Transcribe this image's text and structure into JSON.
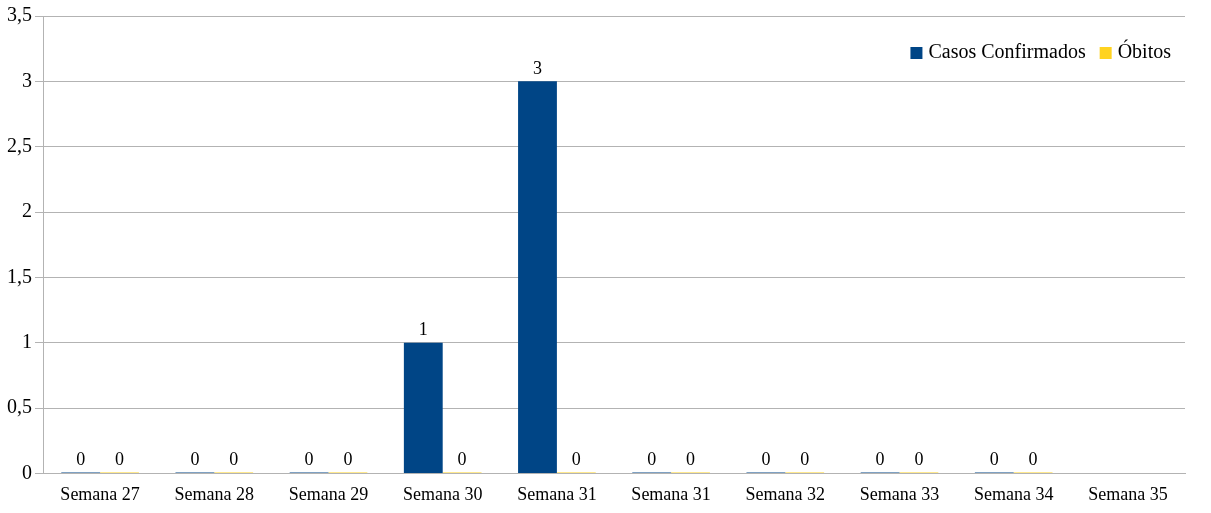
{
  "chart_data": {
    "type": "bar",
    "categories": [
      "Semana 27",
      "Semana 28",
      "Semana 29",
      "Semana 30",
      "Semana 31",
      "Semana 31",
      "Semana 32",
      "Semana 33",
      "Semana 34",
      "Semana 35"
    ],
    "series": [
      {
        "name": "Casos Confirmados",
        "color": "#004586",
        "values": [
          0,
          0,
          0,
          1,
          3,
          0,
          0,
          0,
          0,
          null
        ],
        "value_labels": [
          "0",
          "0",
          "0",
          "1",
          "3",
          "0",
          "0",
          "0",
          "0",
          null
        ]
      },
      {
        "name": "Óbitos",
        "color": "#ffd320",
        "values": [
          0,
          0,
          0,
          0,
          0,
          0,
          0,
          0,
          0,
          null
        ],
        "value_labels": [
          "0",
          "0",
          "0",
          "0",
          "0",
          "0",
          "0",
          "0",
          "0",
          null
        ]
      }
    ],
    "ylim": [
      0,
      3.5
    ],
    "yticks": [
      0,
      {
        "value": 0.5,
        "label": "0,5"
      },
      1,
      {
        "value": 1.5,
        "label": "1,5"
      },
      2,
      {
        "value": 2.5,
        "label": "2,5"
      },
      3,
      {
        "value": 3.5,
        "label": "3,5"
      }
    ],
    "grid": "y",
    "legend": "top right"
  }
}
